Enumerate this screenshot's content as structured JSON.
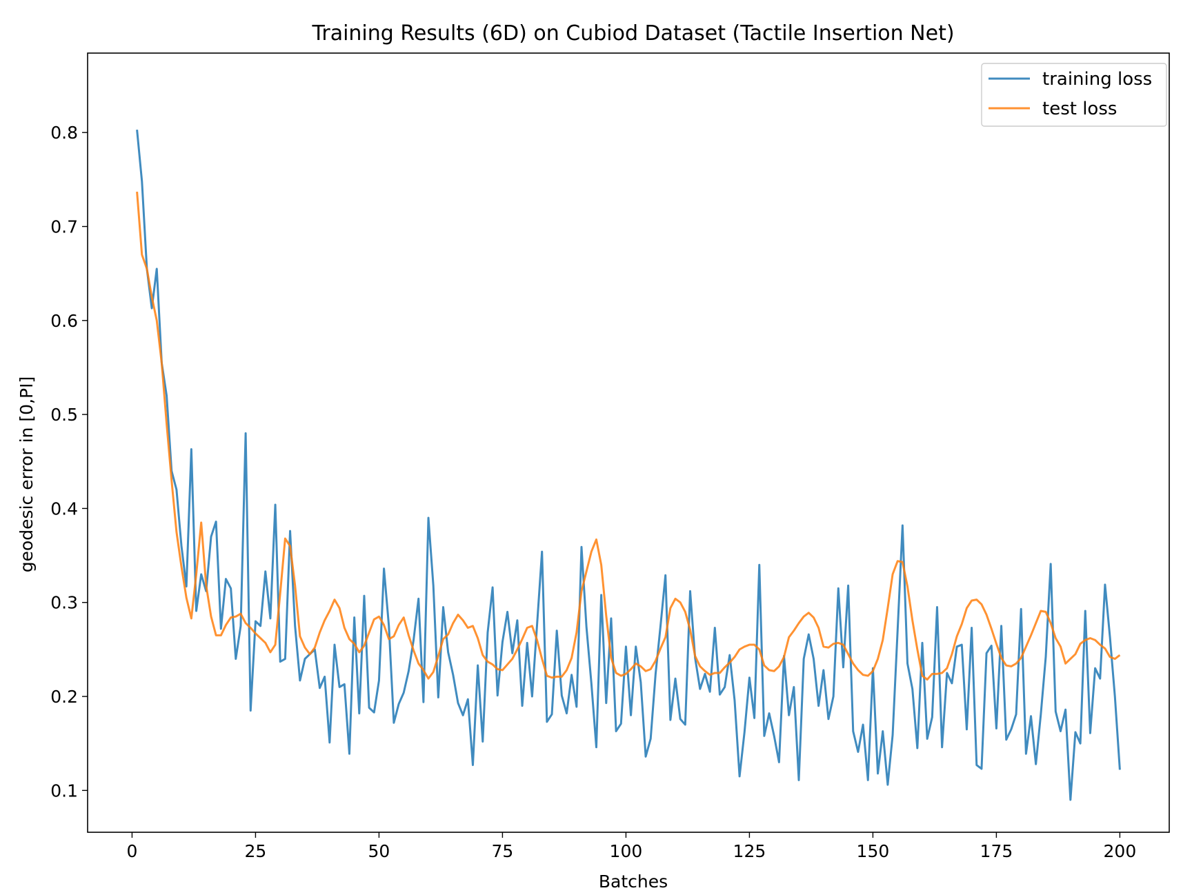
{
  "chart_data": {
    "type": "line",
    "title": "Training Results (6D) on Cubiod Dataset (Tactile Insertion Net)",
    "xlabel": "Batches",
    "ylabel": "geodesic error in [0,PI]",
    "xlim": [
      -9,
      210
    ],
    "ylim": [
      0.0555,
      0.8845
    ],
    "xticks": [
      0,
      25,
      50,
      75,
      100,
      125,
      150,
      175,
      200
    ],
    "xtick_labels": [
      "0",
      "25",
      "50",
      "75",
      "100",
      "125",
      "150",
      "175",
      "200"
    ],
    "yticks": [
      0.1,
      0.2,
      0.3,
      0.4,
      0.5,
      0.6,
      0.7,
      0.8
    ],
    "ytick_labels": [
      "0.1",
      "0.2",
      "0.3",
      "0.4",
      "0.5",
      "0.6",
      "0.7",
      "0.8"
    ],
    "grid": false,
    "legend_position": "top-right",
    "x": [
      1,
      2,
      3,
      4,
      5,
      6,
      7,
      8,
      9,
      10,
      11,
      12,
      13,
      14,
      15,
      16,
      17,
      18,
      19,
      20,
      21,
      22,
      23,
      24,
      25,
      26,
      27,
      28,
      29,
      30,
      31,
      32,
      33,
      34,
      35,
      36,
      37,
      38,
      39,
      40,
      41,
      42,
      43,
      44,
      45,
      46,
      47,
      48,
      49,
      50,
      51,
      52,
      53,
      54,
      55,
      56,
      57,
      58,
      59,
      60,
      61,
      62,
      63,
      64,
      65,
      66,
      67,
      68,
      69,
      70,
      71,
      72,
      73,
      74,
      75,
      76,
      77,
      78,
      79,
      80,
      81,
      82,
      83,
      84,
      85,
      86,
      87,
      88,
      89,
      90,
      91,
      92,
      93,
      94,
      95,
      96,
      97,
      98,
      99,
      100,
      101,
      102,
      103,
      104,
      105,
      106,
      107,
      108,
      109,
      110,
      111,
      112,
      113,
      114,
      115,
      116,
      117,
      118,
      119,
      120,
      121,
      122,
      123,
      124,
      125,
      126,
      127,
      128,
      129,
      130,
      131,
      132,
      133,
      134,
      135,
      136,
      137,
      138,
      139,
      140,
      141,
      142,
      143,
      144,
      145,
      146,
      147,
      148,
      149,
      150,
      151,
      152,
      153,
      154,
      155,
      156,
      157,
      158,
      159,
      160,
      161,
      162,
      163,
      164,
      165,
      166,
      167,
      168,
      169,
      170,
      171,
      172,
      173,
      174,
      175,
      176,
      177,
      178,
      179,
      180,
      181,
      182,
      183,
      184,
      185,
      186,
      187,
      188,
      189,
      190,
      191,
      192,
      193,
      194,
      195,
      196,
      197,
      198,
      199,
      200
    ],
    "series": [
      {
        "name": "training loss",
        "color": "#1f77b4",
        "values": [
          0.803,
          0.748,
          0.655,
          0.613,
          0.655,
          0.555,
          0.52,
          0.44,
          0.42,
          0.36,
          0.317,
          0.463,
          0.291,
          0.33,
          0.312,
          0.37,
          0.386,
          0.272,
          0.325,
          0.315,
          0.24,
          0.275,
          0.48,
          0.185,
          0.28,
          0.275,
          0.333,
          0.283,
          0.404,
          0.237,
          0.24,
          0.376,
          0.275,
          0.217,
          0.24,
          0.245,
          0.25,
          0.209,
          0.221,
          0.151,
          0.255,
          0.21,
          0.213,
          0.139,
          0.284,
          0.182,
          0.307,
          0.188,
          0.183,
          0.217,
          0.336,
          0.275,
          0.172,
          0.192,
          0.204,
          0.227,
          0.26,
          0.304,
          0.194,
          0.39,
          0.318,
          0.199,
          0.295,
          0.247,
          0.223,
          0.193,
          0.18,
          0.197,
          0.127,
          0.233,
          0.152,
          0.268,
          0.316,
          0.201,
          0.258,
          0.29,
          0.246,
          0.281,
          0.19,
          0.257,
          0.2,
          0.276,
          0.354,
          0.173,
          0.181,
          0.27,
          0.201,
          0.182,
          0.223,
          0.189,
          0.359,
          0.274,
          0.214,
          0.146,
          0.308,
          0.193,
          0.283,
          0.163,
          0.171,
          0.253,
          0.18,
          0.253,
          0.215,
          0.136,
          0.155,
          0.224,
          0.275,
          0.329,
          0.175,
          0.219,
          0.176,
          0.17,
          0.312,
          0.241,
          0.208,
          0.224,
          0.205,
          0.273,
          0.202,
          0.21,
          0.244,
          0.196,
          0.115,
          0.162,
          0.22,
          0.177,
          0.34,
          0.158,
          0.182,
          0.158,
          0.13,
          0.243,
          0.18,
          0.21,
          0.111,
          0.24,
          0.266,
          0.24,
          0.19,
          0.228,
          0.176,
          0.2,
          0.315,
          0.231,
          0.318,
          0.163,
          0.141,
          0.17,
          0.111,
          0.23,
          0.118,
          0.163,
          0.106,
          0.159,
          0.27,
          0.382,
          0.235,
          0.208,
          0.145,
          0.257,
          0.155,
          0.178,
          0.295,
          0.146,
          0.225,
          0.214,
          0.253,
          0.255,
          0.165,
          0.273,
          0.127,
          0.123,
          0.246,
          0.254,
          0.166,
          0.275,
          0.154,
          0.165,
          0.181,
          0.293,
          0.139,
          0.179,
          0.128,
          0.181,
          0.242,
          0.341,
          0.184,
          0.163,
          0.186,
          0.09,
          0.162,
          0.15,
          0.291,
          0.161,
          0.23,
          0.219,
          0.319,
          0.263,
          0.2,
          0.122
        ]
      },
      {
        "name": "test loss",
        "color": "#ff7f0e",
        "values": [
          0.737,
          0.67,
          0.655,
          0.625,
          0.6,
          0.555,
          0.49,
          0.43,
          0.375,
          0.338,
          0.305,
          0.283,
          0.33,
          0.385,
          0.318,
          0.285,
          0.265,
          0.265,
          0.276,
          0.284,
          0.285,
          0.288,
          0.278,
          0.273,
          0.267,
          0.262,
          0.257,
          0.247,
          0.255,
          0.31,
          0.368,
          0.36,
          0.318,
          0.264,
          0.252,
          0.245,
          0.252,
          0.268,
          0.281,
          0.291,
          0.303,
          0.294,
          0.273,
          0.261,
          0.256,
          0.247,
          0.254,
          0.268,
          0.282,
          0.285,
          0.276,
          0.261,
          0.264,
          0.276,
          0.284,
          0.265,
          0.249,
          0.235,
          0.228,
          0.219,
          0.226,
          0.243,
          0.261,
          0.266,
          0.278,
          0.287,
          0.281,
          0.273,
          0.275,
          0.262,
          0.244,
          0.237,
          0.234,
          0.229,
          0.228,
          0.234,
          0.24,
          0.25,
          0.261,
          0.273,
          0.275,
          0.26,
          0.24,
          0.222,
          0.22,
          0.221,
          0.221,
          0.228,
          0.241,
          0.268,
          0.312,
          0.333,
          0.354,
          0.367,
          0.34,
          0.286,
          0.241,
          0.225,
          0.222,
          0.224,
          0.229,
          0.235,
          0.232,
          0.227,
          0.229,
          0.238,
          0.251,
          0.263,
          0.294,
          0.304,
          0.3,
          0.29,
          0.271,
          0.243,
          0.232,
          0.227,
          0.223,
          0.225,
          0.225,
          0.231,
          0.236,
          0.242,
          0.25,
          0.253,
          0.255,
          0.255,
          0.25,
          0.233,
          0.228,
          0.227,
          0.232,
          0.242,
          0.263,
          0.27,
          0.278,
          0.285,
          0.289,
          0.284,
          0.273,
          0.253,
          0.252,
          0.256,
          0.257,
          0.255,
          0.245,
          0.235,
          0.228,
          0.223,
          0.222,
          0.227,
          0.24,
          0.26,
          0.294,
          0.33,
          0.344,
          0.343,
          0.317,
          0.281,
          0.25,
          0.222,
          0.218,
          0.224,
          0.224,
          0.225,
          0.23,
          0.245,
          0.264,
          0.277,
          0.294,
          0.302,
          0.303,
          0.298,
          0.287,
          0.272,
          0.256,
          0.241,
          0.233,
          0.232,
          0.235,
          0.241,
          0.253,
          0.265,
          0.278,
          0.291,
          0.29,
          0.278,
          0.262,
          0.253,
          0.235,
          0.24,
          0.245,
          0.256,
          0.26,
          0.262,
          0.26,
          0.255,
          0.251,
          0.242,
          0.24,
          0.244
        ]
      }
    ]
  }
}
